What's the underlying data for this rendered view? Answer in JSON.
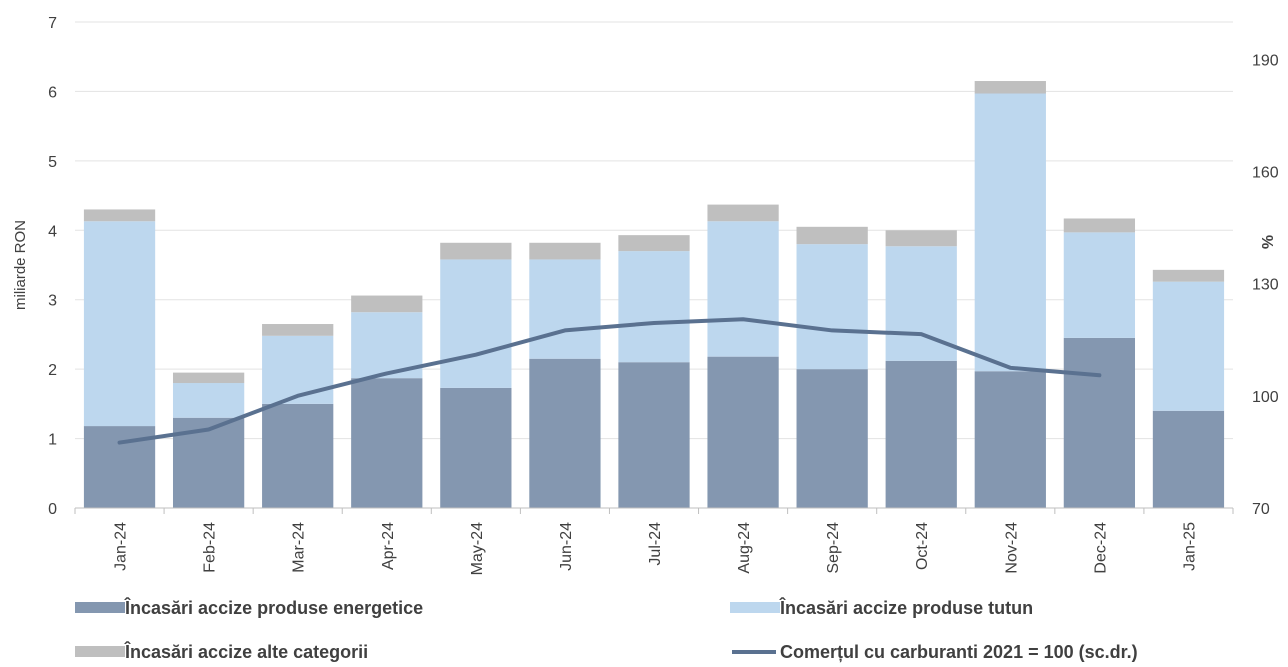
{
  "chart_data": {
    "type": "bar",
    "stacked": true,
    "categories": [
      "Jan-24",
      "Feb-24",
      "Mar-24",
      "Apr-24",
      "May-24",
      "Jun-24",
      "Jul-24",
      "Aug-24",
      "Sep-24",
      "Oct-24",
      "Nov-24",
      "Dec-24",
      "Jan-25"
    ],
    "series": [
      {
        "name": "Încasări accize produse energetice",
        "type": "bar",
        "axis": "left",
        "color": "#8497b0",
        "values": [
          1.18,
          1.3,
          1.5,
          1.87,
          1.73,
          2.15,
          2.1,
          2.18,
          2.0,
          2.12,
          1.97,
          2.45,
          1.4
        ]
      },
      {
        "name": "Încasări accize produse tutun",
        "type": "bar",
        "axis": "left",
        "color": "#bdd7ee",
        "values": [
          2.95,
          0.5,
          0.98,
          0.95,
          1.85,
          1.43,
          1.6,
          1.95,
          1.8,
          1.65,
          4.0,
          1.52,
          1.86
        ]
      },
      {
        "name": "Încasări accize alte categorii",
        "type": "bar",
        "axis": "left",
        "color": "#bfbfbf",
        "values": [
          0.17,
          0.15,
          0.17,
          0.24,
          0.24,
          0.24,
          0.23,
          0.24,
          0.25,
          0.23,
          0.18,
          0.2,
          0.17
        ]
      },
      {
        "name": "Comerțul cu carburanti 2021 = 100 (sc.dr.)",
        "type": "line",
        "axis": "right",
        "color": "#5a7190",
        "values": [
          87.5,
          91,
          100,
          106,
          111,
          117.5,
          119.5,
          120.5,
          117.5,
          116.5,
          107.5,
          105.5,
          null
        ]
      }
    ],
    "ylabel": "miliarde RON",
    "y2label": "%",
    "ylim": [
      0,
      7
    ],
    "y2lim": [
      70,
      200
    ],
    "yticks": [
      "0",
      "1",
      "2",
      "3",
      "4",
      "5",
      "6",
      "7"
    ],
    "y2ticks": [
      "70",
      "100",
      "130",
      "160",
      "190"
    ],
    "grid": true,
    "legend_position": "bottom"
  }
}
